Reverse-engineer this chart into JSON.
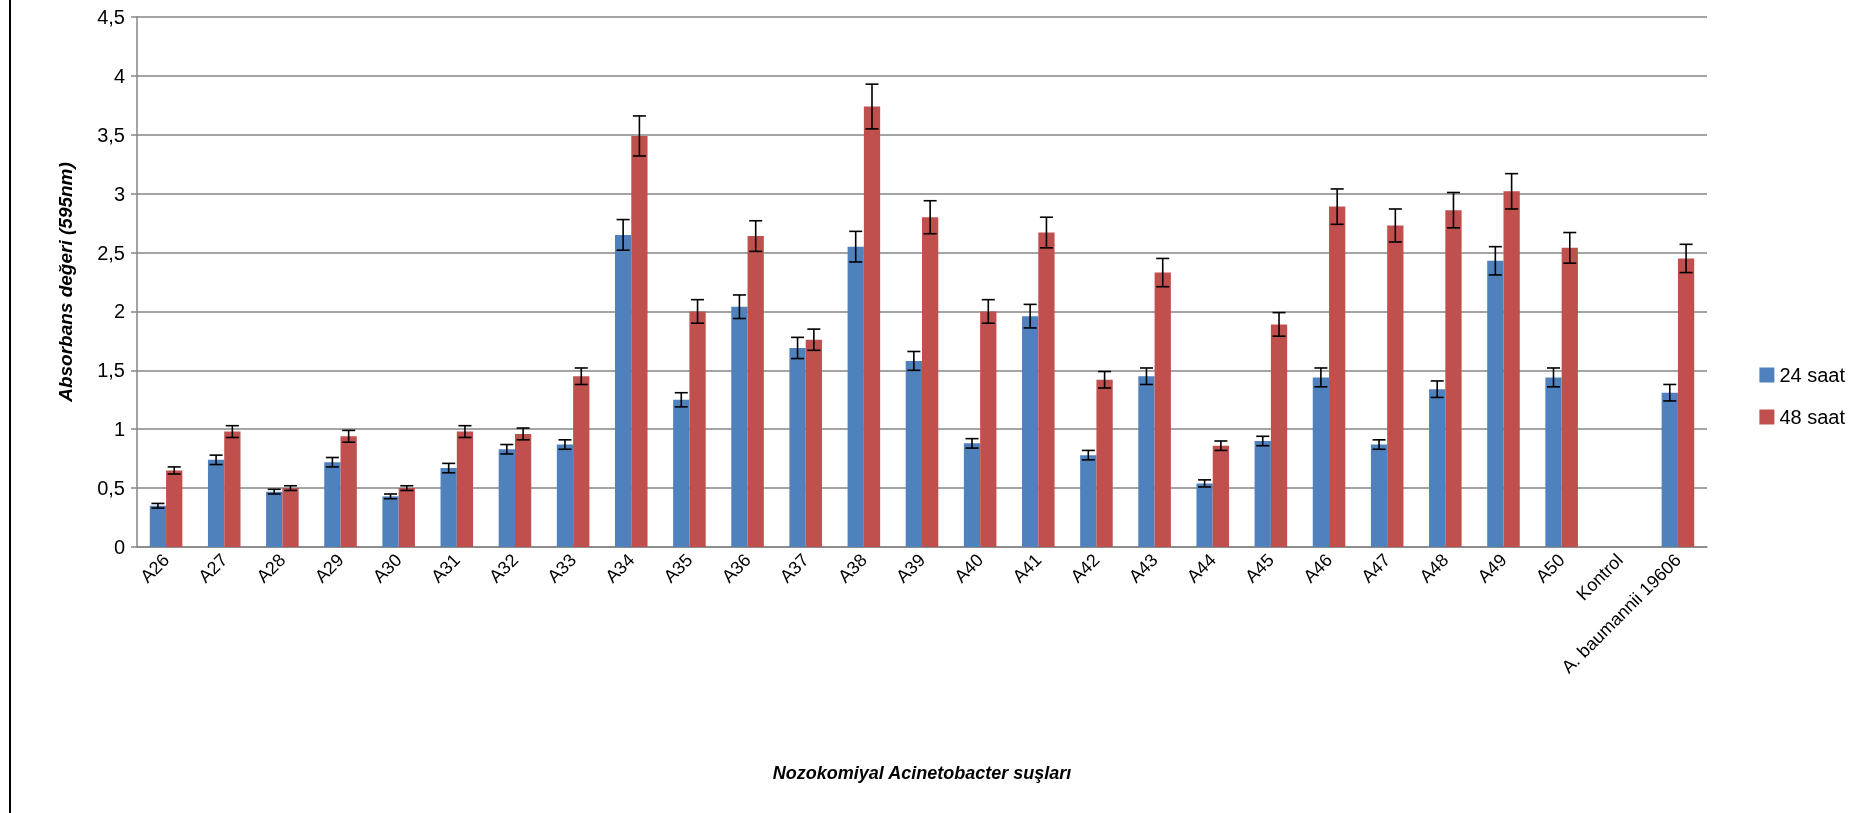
{
  "chart_data": {
    "type": "bar",
    "xlabel": "Nozokomiyal Acinetobacter suşları",
    "ylabel": "Absorbans değeri (595nm)",
    "categories": [
      "A26",
      "A27",
      "A28",
      "A29",
      "A30",
      "A31",
      "A32",
      "A33",
      "A34",
      "A35",
      "A36",
      "A37",
      "A38",
      "A39",
      "A40",
      "A41",
      "A42",
      "A43",
      "A44",
      "A45",
      "A46",
      "A47",
      "A48",
      "A49",
      "A50",
      "Kontrol",
      "A. baumannii 19606"
    ],
    "series": [
      {
        "name": "24 saat",
        "color": "#4f81bd",
        "values": [
          0.35,
          0.74,
          0.47,
          0.72,
          0.43,
          0.67,
          0.83,
          0.87,
          2.65,
          1.25,
          2.04,
          1.69,
          2.55,
          1.58,
          0.88,
          1.96,
          0.78,
          1.45,
          0.54,
          0.9,
          1.44,
          0.87,
          1.34,
          2.43,
          1.44,
          0,
          1.31
        ],
        "errors": [
          0.02,
          0.04,
          0.02,
          0.04,
          0.02,
          0.04,
          0.04,
          0.04,
          0.13,
          0.06,
          0.1,
          0.09,
          0.13,
          0.08,
          0.04,
          0.1,
          0.04,
          0.07,
          0.03,
          0.04,
          0.08,
          0.04,
          0.07,
          0.12,
          0.08,
          null,
          0.07
        ]
      },
      {
        "name": "48 saat",
        "color": "#c0504d",
        "values": [
          0.65,
          0.98,
          0.5,
          0.94,
          0.5,
          0.98,
          0.96,
          1.45,
          3.49,
          2.0,
          2.64,
          1.76,
          3.74,
          2.8,
          2.0,
          2.67,
          1.42,
          2.33,
          0.86,
          1.89,
          2.89,
          2.73,
          2.86,
          3.02,
          2.54,
          0,
          2.45
        ],
        "errors": [
          0.03,
          0.05,
          0.02,
          0.05,
          0.02,
          0.05,
          0.05,
          0.07,
          0.17,
          0.1,
          0.13,
          0.09,
          0.19,
          0.14,
          0.1,
          0.13,
          0.07,
          0.12,
          0.04,
          0.1,
          0.15,
          0.14,
          0.15,
          0.15,
          0.13,
          null,
          0.12
        ]
      }
    ],
    "ylim": [
      0,
      4.5
    ],
    "yticks": [
      0,
      {
        "value": 0.5,
        "label": "0,5"
      },
      1,
      {
        "value": 1.5,
        "label": "1,5"
      },
      2,
      {
        "value": 2.5,
        "label": "2,5"
      },
      3,
      {
        "value": 3.5,
        "label": "3,5"
      },
      4,
      {
        "value": 4.5,
        "label": "4,5"
      }
    ],
    "grid": "y",
    "legend": "right"
  }
}
